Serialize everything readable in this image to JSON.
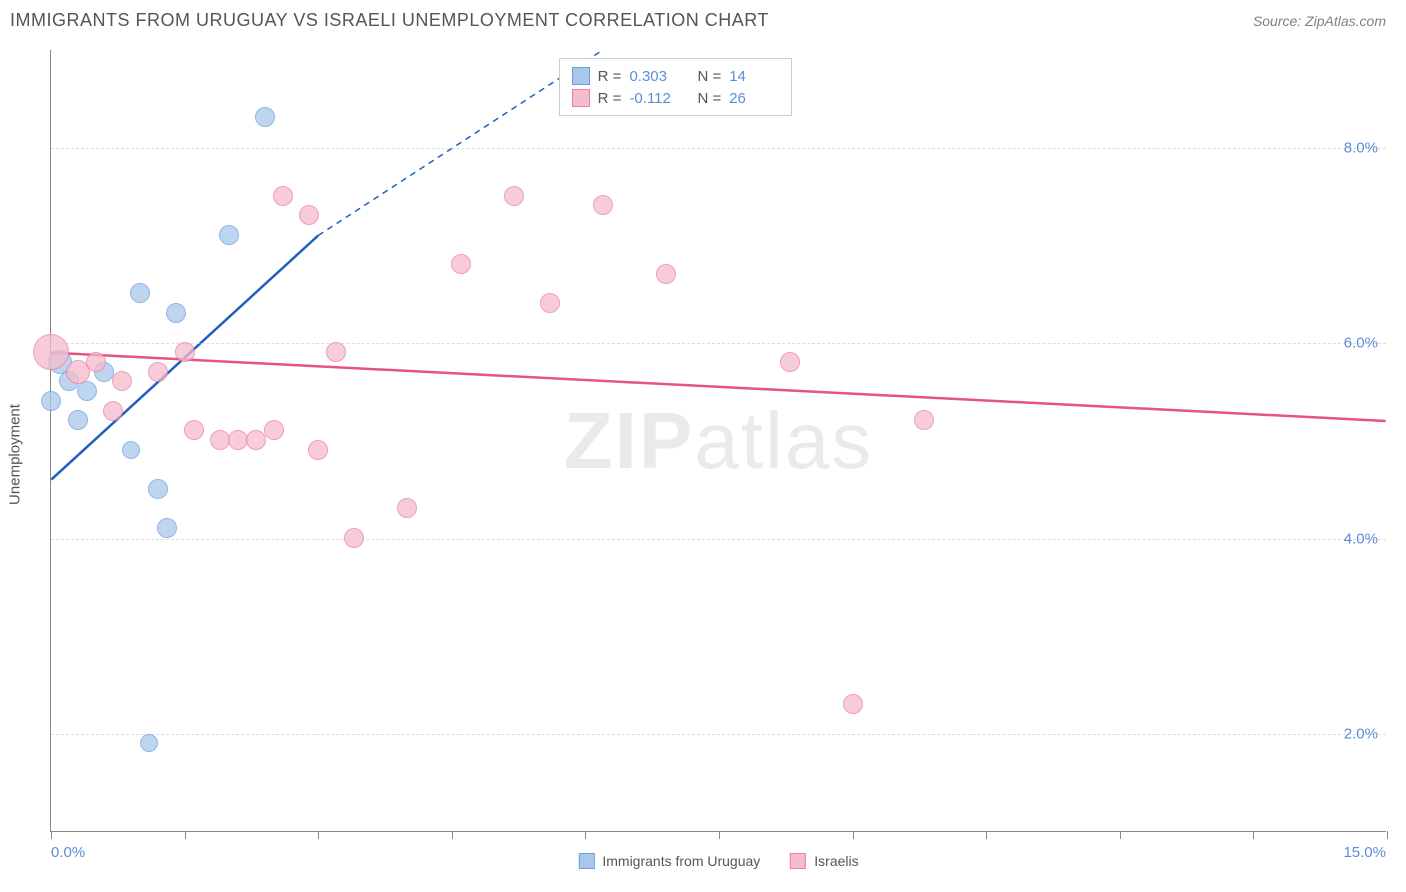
{
  "header": {
    "title": "IMMIGRANTS FROM URUGUAY VS ISRAELI UNEMPLOYMENT CORRELATION CHART",
    "source": "Source: ZipAtlas.com"
  },
  "ylabel": "Unemployment",
  "watermark_zip": "ZIP",
  "watermark_atlas": "atlas",
  "chart": {
    "type": "scatter",
    "xlim": [
      0,
      15
    ],
    "ylim": [
      1,
      9
    ],
    "yticks": [
      2.0,
      4.0,
      6.0,
      8.0
    ],
    "ytick_labels": [
      "2.0%",
      "4.0%",
      "6.0%",
      "8.0%"
    ],
    "xticks": [
      0,
      1.5,
      3.0,
      4.5,
      6.0,
      7.5,
      9.0,
      10.5,
      12.0,
      13.5,
      15.0
    ],
    "xaxis_start_label": "0.0%",
    "xaxis_end_label": "15.0%",
    "grid_color": "#dddddd",
    "axis_color": "#888888",
    "background": "#ffffff"
  },
  "series": [
    {
      "name": "Immigrants from Uruguay",
      "fill": "#a9c7ea",
      "stroke": "#6d9fde",
      "trend_color": "#1f5fbf",
      "points": [
        {
          "x": 0.0,
          "y": 5.4,
          "r": 10
        },
        {
          "x": 0.1,
          "y": 5.8,
          "r": 12
        },
        {
          "x": 0.2,
          "y": 5.6,
          "r": 10
        },
        {
          "x": 0.3,
          "y": 5.2,
          "r": 10
        },
        {
          "x": 0.4,
          "y": 5.5,
          "r": 10
        },
        {
          "x": 0.6,
          "y": 5.7,
          "r": 10
        },
        {
          "x": 0.9,
          "y": 4.9,
          "r": 9
        },
        {
          "x": 1.0,
          "y": 6.5,
          "r": 10
        },
        {
          "x": 1.1,
          "y": 1.9,
          "r": 9
        },
        {
          "x": 1.2,
          "y": 4.5,
          "r": 10
        },
        {
          "x": 1.3,
          "y": 4.1,
          "r": 10
        },
        {
          "x": 1.4,
          "y": 6.3,
          "r": 10
        },
        {
          "x": 2.0,
          "y": 7.1,
          "r": 10
        },
        {
          "x": 2.4,
          "y": 8.3,
          "r": 10
        }
      ],
      "trend": {
        "x1": 0,
        "y1": 4.6,
        "x2": 3.0,
        "y2": 7.1,
        "dash_to_x": 6.2,
        "dash_to_y": 9.0
      }
    },
    {
      "name": "Israelis",
      "fill": "#f5bccb",
      "stroke": "#ea7f9f",
      "trend_color": "#e75480",
      "points": [
        {
          "x": 0.0,
          "y": 5.9,
          "r": 18
        },
        {
          "x": 0.3,
          "y": 5.7,
          "r": 12
        },
        {
          "x": 0.5,
          "y": 5.8,
          "r": 10
        },
        {
          "x": 0.7,
          "y": 5.3,
          "r": 10
        },
        {
          "x": 0.8,
          "y": 5.6,
          "r": 10
        },
        {
          "x": 1.2,
          "y": 5.7,
          "r": 10
        },
        {
          "x": 1.5,
          "y": 5.9,
          "r": 10
        },
        {
          "x": 1.6,
          "y": 5.1,
          "r": 10
        },
        {
          "x": 1.9,
          "y": 5.0,
          "r": 10
        },
        {
          "x": 2.1,
          "y": 5.0,
          "r": 10
        },
        {
          "x": 2.3,
          "y": 5.0,
          "r": 10
        },
        {
          "x": 2.5,
          "y": 5.1,
          "r": 10
        },
        {
          "x": 2.6,
          "y": 7.5,
          "r": 10
        },
        {
          "x": 2.9,
          "y": 7.3,
          "r": 10
        },
        {
          "x": 3.0,
          "y": 4.9,
          "r": 10
        },
        {
          "x": 3.2,
          "y": 5.9,
          "r": 10
        },
        {
          "x": 3.4,
          "y": 4.0,
          "r": 10
        },
        {
          "x": 4.0,
          "y": 4.3,
          "r": 10
        },
        {
          "x": 4.6,
          "y": 6.8,
          "r": 10
        },
        {
          "x": 5.2,
          "y": 7.5,
          "r": 10
        },
        {
          "x": 5.6,
          "y": 6.4,
          "r": 10
        },
        {
          "x": 6.2,
          "y": 7.4,
          "r": 10
        },
        {
          "x": 6.9,
          "y": 6.7,
          "r": 10
        },
        {
          "x": 8.3,
          "y": 5.8,
          "r": 10
        },
        {
          "x": 9.0,
          "y": 2.3,
          "r": 10
        },
        {
          "x": 9.8,
          "y": 5.2,
          "r": 10
        }
      ],
      "trend": {
        "x1": 0,
        "y1": 5.9,
        "x2": 15,
        "y2": 5.2
      }
    }
  ],
  "stats_box": {
    "r_label": "R =",
    "n_label": "N =",
    "rows": [
      {
        "series": 0,
        "r": "0.303",
        "n": "14"
      },
      {
        "series": 1,
        "r": "-0.112",
        "n": "26"
      }
    ]
  },
  "legend": [
    {
      "series": 0
    },
    {
      "series": 1
    }
  ]
}
